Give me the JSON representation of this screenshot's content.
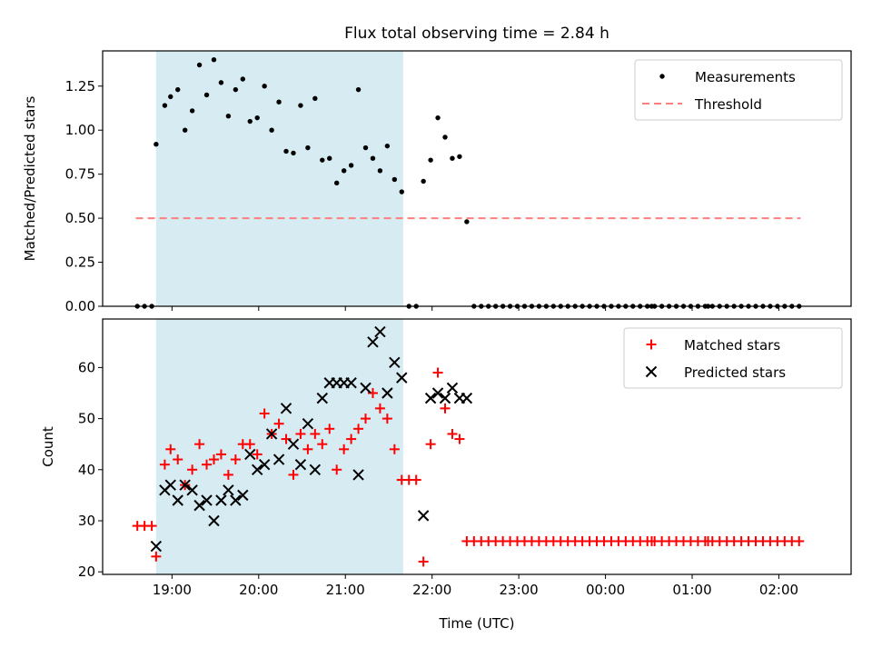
{
  "title": "Flux total observing time = 2.84 h",
  "xlabel": "Time (UTC)",
  "x_ticks": [
    "19:00",
    "20:00",
    "21:00",
    "22:00",
    "23:00",
    "00:00",
    "01:00",
    "02:00"
  ],
  "shaded_window": {
    "start": "18:49",
    "end": "21:40",
    "color": "#add8e6"
  },
  "colors": {
    "measurement": "#000000",
    "threshold": "#ff7f7f",
    "matched": "#ff0000",
    "predicted": "#000000",
    "shade": "#add8e6"
  },
  "chart_data": [
    {
      "type": "scatter",
      "ylabel": "Matched/Predicted stars",
      "ylim": [
        0,
        1.45
      ],
      "y_ticks": [
        "0.00",
        "0.25",
        "0.50",
        "0.75",
        "1.00",
        "1.25"
      ],
      "legend": {
        "placement": "top-right",
        "entries": [
          "Measurements",
          "Threshold"
        ]
      },
      "threshold": {
        "value": 0.5,
        "x_start": "18:35",
        "x_end": "02:15"
      },
      "series": [
        {
          "name": "Measurements",
          "x": [
            "18:36",
            "18:41",
            "18:46",
            "18:49",
            "18:55",
            "18:59",
            "19:04",
            "19:09",
            "19:14",
            "19:19",
            "19:24",
            "19:29",
            "19:34",
            "19:39",
            "19:44",
            "19:49",
            "19:54",
            "19:59",
            "20:04",
            "20:09",
            "20:14",
            "20:19",
            "20:24",
            "20:29",
            "20:34",
            "20:39",
            "20:44",
            "20:49",
            "20:54",
            "20:59",
            "21:04",
            "21:09",
            "21:14",
            "21:19",
            "21:24",
            "21:29",
            "21:34",
            "21:39",
            "21:44",
            "21:49",
            "21:54",
            "21:59",
            "22:04",
            "22:09",
            "22:14",
            "22:19",
            "22:24",
            "22:29",
            "22:34",
            "22:39",
            "22:44",
            "22:49",
            "22:54",
            "22:59",
            "23:04",
            "23:09",
            "23:14",
            "23:19",
            "23:24",
            "23:29",
            "23:34",
            "23:39",
            "23:44",
            "23:49",
            "23:54",
            "23:59",
            "00:04",
            "00:09",
            "00:14",
            "00:19",
            "00:24",
            "00:29",
            "00:32",
            "00:34",
            "00:39",
            "00:44",
            "00:49",
            "00:54",
            "00:59",
            "01:04",
            "01:09",
            "01:11",
            "01:14",
            "01:19",
            "01:24",
            "01:29",
            "01:34",
            "01:39",
            "01:44",
            "01:49",
            "01:54",
            "01:59",
            "02:04",
            "02:09",
            "02:14"
          ],
          "y": [
            0,
            0,
            0,
            0.92,
            1.14,
            1.19,
            1.23,
            1.0,
            1.11,
            1.37,
            1.2,
            1.4,
            1.27,
            1.08,
            1.23,
            1.29,
            1.05,
            1.07,
            1.25,
            1.0,
            1.16,
            0.88,
            0.87,
            1.14,
            0.9,
            1.18,
            0.83,
            0.84,
            0.7,
            0.77,
            0.8,
            1.23,
            0.9,
            0.84,
            0.77,
            0.91,
            0.72,
            0.65,
            0,
            0,
            0.71,
            0.83,
            1.07,
            0.96,
            0.84,
            0.85,
            0.48,
            0,
            0,
            0,
            0,
            0,
            0,
            0,
            0,
            0,
            0,
            0,
            0,
            0,
            0,
            0,
            0,
            0,
            0,
            0,
            0,
            0,
            0,
            0,
            0,
            0,
            0,
            0,
            0,
            0,
            0,
            0,
            0,
            0,
            0,
            0,
            0,
            0,
            0,
            0,
            0,
            0,
            0,
            0,
            0,
            0,
            0,
            0,
            0
          ]
        }
      ]
    },
    {
      "type": "scatter",
      "ylabel": "Count",
      "ylim": [
        19.5,
        69.5
      ],
      "y_ticks": [
        "20",
        "30",
        "40",
        "50",
        "60"
      ],
      "legend": {
        "placement": "top-right",
        "entries": [
          "Matched stars",
          "Predicted stars"
        ]
      },
      "series": [
        {
          "name": "Matched stars",
          "x": [
            "18:36",
            "18:41",
            "18:46",
            "18:49",
            "18:55",
            "18:59",
            "19:04",
            "19:09",
            "19:14",
            "19:19",
            "19:24",
            "19:29",
            "19:34",
            "19:39",
            "19:44",
            "19:49",
            "19:54",
            "19:59",
            "20:04",
            "20:09",
            "20:14",
            "20:19",
            "20:24",
            "20:29",
            "20:34",
            "20:39",
            "20:44",
            "20:49",
            "20:54",
            "20:59",
            "21:04",
            "21:09",
            "21:14",
            "21:19",
            "21:24",
            "21:29",
            "21:34",
            "21:39",
            "21:44",
            "21:49",
            "21:54",
            "21:59",
            "22:04",
            "22:09",
            "22:14",
            "22:19",
            "22:24",
            "22:29",
            "22:34",
            "22:39",
            "22:44",
            "22:49",
            "22:54",
            "22:59",
            "23:04",
            "23:09",
            "23:14",
            "23:19",
            "23:24",
            "23:29",
            "23:34",
            "23:39",
            "23:44",
            "23:49",
            "23:54",
            "23:59",
            "00:04",
            "00:09",
            "00:14",
            "00:19",
            "00:24",
            "00:29",
            "00:32",
            "00:34",
            "00:39",
            "00:44",
            "00:49",
            "00:54",
            "00:59",
            "01:04",
            "01:09",
            "01:11",
            "01:14",
            "01:19",
            "01:24",
            "01:29",
            "01:34",
            "01:39",
            "01:44",
            "01:49",
            "01:54",
            "01:59",
            "02:04",
            "02:09",
            "02:14"
          ],
          "y": [
            29,
            29,
            29,
            23,
            41,
            44,
            42,
            37,
            40,
            45,
            41,
            42,
            43,
            39,
            42,
            45,
            45,
            43,
            51,
            47,
            49,
            46,
            39,
            47,
            44,
            47,
            45,
            48,
            40,
            44,
            46,
            48,
            50,
            55,
            52,
            50,
            44,
            38,
            38,
            38,
            22,
            45,
            59,
            52,
            47,
            46,
            26,
            26,
            26,
            26,
            26,
            26,
            26,
            26,
            26,
            26,
            26,
            26,
            26,
            26,
            26,
            26,
            26,
            26,
            26,
            26,
            26,
            26,
            26,
            26,
            26,
            26,
            26,
            26,
            26,
            26,
            26,
            26,
            26,
            26,
            26,
            26,
            26,
            26,
            26,
            26,
            26,
            26,
            26,
            26,
            26,
            26,
            26,
            26,
            26
          ]
        },
        {
          "name": "Predicted stars",
          "x": [
            "18:49",
            "18:55",
            "18:59",
            "19:04",
            "19:09",
            "19:14",
            "19:19",
            "19:24",
            "19:29",
            "19:34",
            "19:39",
            "19:44",
            "19:49",
            "19:54",
            "19:59",
            "20:04",
            "20:09",
            "20:14",
            "20:19",
            "20:24",
            "20:29",
            "20:34",
            "20:39",
            "20:44",
            "20:49",
            "20:54",
            "20:59",
            "21:04",
            "21:09",
            "21:14",
            "21:19",
            "21:24",
            "21:29",
            "21:34",
            "21:39",
            "21:54",
            "21:59",
            "22:04",
            "22:09",
            "22:14",
            "22:19",
            "22:24"
          ],
          "y": [
            25,
            36,
            37,
            34,
            37,
            36,
            33,
            34,
            30,
            34,
            36,
            34,
            35,
            43,
            40,
            41,
            47,
            42,
            52,
            45,
            41,
            49,
            40,
            54,
            57,
            57,
            57,
            57,
            39,
            56,
            65,
            67,
            55,
            61,
            58,
            31,
            54,
            55,
            54,
            56,
            54,
            54
          ]
        }
      ]
    }
  ]
}
